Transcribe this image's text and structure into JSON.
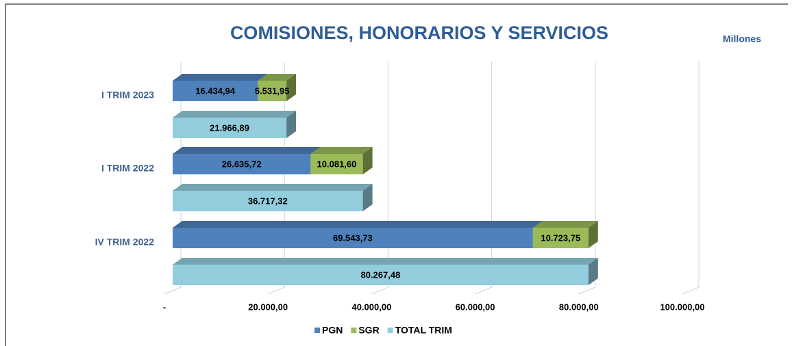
{
  "chart_data": {
    "type": "bar3d_horizontal",
    "title": "COMISIONES, HONORARIOS Y SERVICIOS",
    "unit_label": "Millones",
    "categories": [
      "I TRIM 2023",
      "I TRIM 2022",
      "IV TRIM 2022"
    ],
    "series": [
      {
        "name": "PGN",
        "color": "#4f81bd",
        "values": [
          16434.94,
          26635.72,
          69543.73
        ],
        "value_labels": [
          "16.434,94",
          "26.635,72",
          "69.543,73"
        ]
      },
      {
        "name": "SGR",
        "color": "#9bbb59",
        "values": [
          5531.95,
          10081.6,
          10723.75
        ],
        "value_labels": [
          "5.531,95",
          "10.081,60",
          "10.723,75"
        ]
      },
      {
        "name": "TOTAL TRIM",
        "color": "#93cddd",
        "values": [
          21966.89,
          36717.32,
          80267.48
        ],
        "value_labels": [
          "21.966,89",
          "36.717,32",
          "80.267,48"
        ]
      }
    ],
    "xlim": [
      0,
      100000
    ],
    "xticks": [
      {
        "value": 0,
        "label": "-"
      },
      {
        "value": 20000,
        "label": "20.000,00"
      },
      {
        "value": 40000,
        "label": "40.000,00"
      },
      {
        "value": 60000,
        "label": "60.000,00"
      },
      {
        "value": 80000,
        "label": "80.000,00"
      },
      {
        "value": 100000,
        "label": "100.000,00"
      }
    ],
    "grid": true
  }
}
